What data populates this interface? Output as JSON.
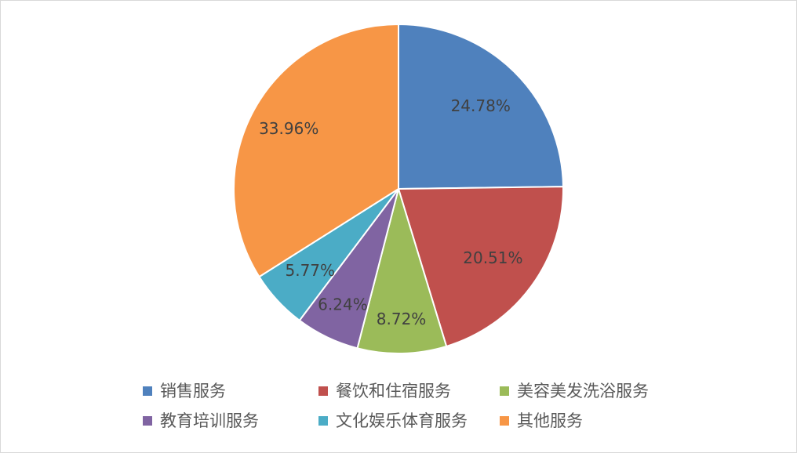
{
  "chart_data": {
    "type": "pie",
    "title": "",
    "start_angle_deg": 0,
    "direction": "clockwise",
    "legend_position": "bottom",
    "series": [
      {
        "name": "",
        "slices": [
          {
            "label": "销售服务",
            "value": 24.78,
            "display": "24.78%",
            "color": "#4F81BD"
          },
          {
            "label": "餐饮和住宿服务",
            "value": 20.51,
            "display": "20.51%",
            "color": "#C0504D"
          },
          {
            "label": "美容美发洗浴服务",
            "value": 8.72,
            "display": "8.72%",
            "color": "#9BBB59"
          },
          {
            "label": "教育培训服务",
            "value": 6.24,
            "display": "6.24%",
            "color": "#8064A2"
          },
          {
            "label": "文化娱乐体育服务",
            "value": 5.77,
            "display": "5.77%",
            "color": "#4BACC6"
          },
          {
            "label": "其他服务",
            "value": 33.96,
            "display": "33.96%",
            "color": "#F79646"
          }
        ]
      }
    ]
  }
}
